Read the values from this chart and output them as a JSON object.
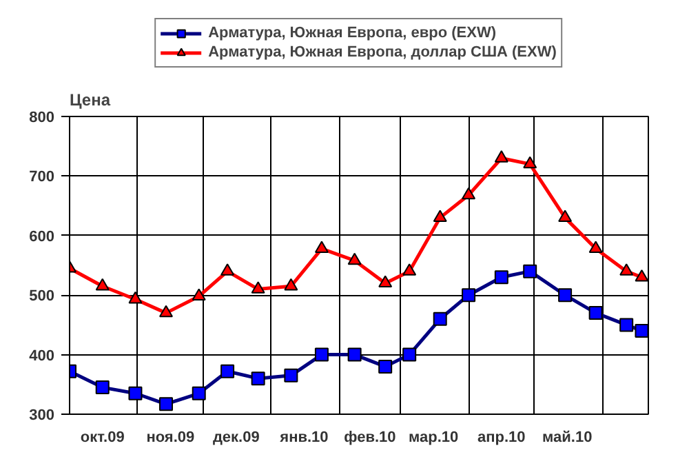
{
  "chart_data": {
    "type": "line",
    "ylabel": "Цена",
    "x": [
      "2009-10-01",
      "2009-10-16",
      "2009-10-31",
      "2009-11-14",
      "2009-11-29",
      "2009-12-12",
      "2009-12-26",
      "2010-01-10",
      "2010-01-24",
      "2010-02-08",
      "2010-02-22",
      "2010-03-05",
      "2010-03-19",
      "2010-04-01",
      "2010-04-16",
      "2010-04-29",
      "2010-05-15",
      "2010-05-29",
      "2010-06-12",
      "2010-06-19"
    ],
    "series": [
      {
        "name": "Арматура, Южная Европа, евро (EXW)",
        "color": "#000080",
        "marker": "square",
        "values": [
          372,
          345,
          335,
          317,
          335,
          372,
          360,
          365,
          400,
          400,
          380,
          400,
          460,
          500,
          530,
          540,
          500,
          470,
          450,
          440
        ]
      },
      {
        "name": "Арматура, Южная Европа, доллар США (EXW)",
        "color": "#ff0000",
        "marker": "triangle",
        "values": [
          545,
          515,
          493,
          470,
          498,
          540,
          510,
          515,
          578,
          558,
          520,
          540,
          630,
          668,
          730,
          720,
          630,
          578,
          540,
          530
        ]
      }
    ],
    "xlim": [
      "2009-10-01",
      "2010-06-22"
    ],
    "xticks": [
      {
        "value": "2009-10-16",
        "label": "окт.09"
      },
      {
        "value": "2009-11-01",
        "label": null
      },
      {
        "value": "2009-11-16",
        "label": "ноя.09"
      },
      {
        "value": "2009-12-01",
        "label": null
      },
      {
        "value": "2009-12-16",
        "label": "дек.09"
      },
      {
        "value": "2010-01-01",
        "label": null
      },
      {
        "value": "2010-01-16",
        "label": "янв.10"
      },
      {
        "value": "2010-02-01",
        "label": null
      },
      {
        "value": "2010-02-15",
        "label": "фев.10"
      },
      {
        "value": "2010-03-01",
        "label": null
      },
      {
        "value": "2010-03-16",
        "label": "мар.10"
      },
      {
        "value": "2010-04-01",
        "label": null
      },
      {
        "value": "2010-04-16",
        "label": "апр.10"
      },
      {
        "value": "2010-05-01",
        "label": null
      },
      {
        "value": "2010-05-16",
        "label": "май.10"
      },
      {
        "value": "2010-06-01",
        "label": null
      }
    ],
    "ylim": [
      300,
      800
    ],
    "yticks": [
      300,
      400,
      500,
      600,
      700,
      800
    ],
    "grid": true,
    "legend": "top",
    "line_style": "solid"
  }
}
